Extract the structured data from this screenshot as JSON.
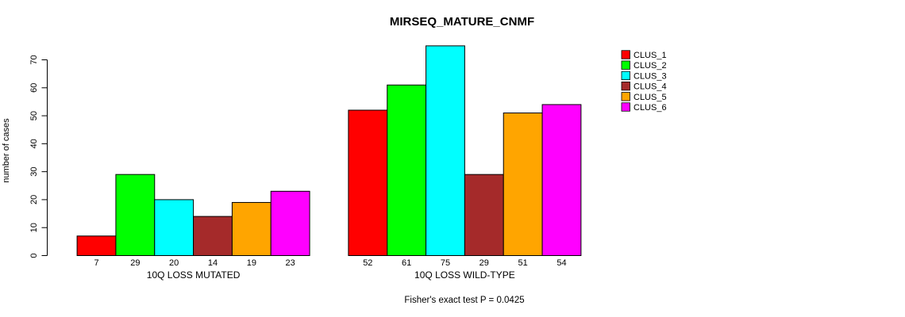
{
  "chart_data": {
    "type": "bar",
    "title": "MIRSEQ_MATURE_CNMF",
    "ylabel": "number of cases",
    "xlabel": "",
    "footnote": "Fisher's exact test P = 0.0425",
    "ylim": [
      0,
      70
    ],
    "yticks": [
      0,
      10,
      20,
      30,
      40,
      50,
      60,
      70
    ],
    "grid": false,
    "legend_position": "top-right",
    "bar_value_labels_shown": true,
    "categories": [
      "10Q LOSS MUTATED",
      "10Q LOSS WILD-TYPE"
    ],
    "series": [
      {
        "name": "CLUS_1",
        "color": "#FF0000",
        "values": [
          7,
          52
        ]
      },
      {
        "name": "CLUS_2",
        "color": "#00FF00",
        "values": [
          29,
          61
        ]
      },
      {
        "name": "CLUS_3",
        "color": "#00FFFF",
        "values": [
          20,
          75
        ]
      },
      {
        "name": "CLUS_4",
        "color": "#A52A2A",
        "values": [
          14,
          29
        ]
      },
      {
        "name": "CLUS_5",
        "color": "#FFA500",
        "values": [
          19,
          51
        ]
      },
      {
        "name": "CLUS_6",
        "color": "#FF00FF",
        "values": [
          23,
          54
        ]
      }
    ],
    "colors": {
      "background": "#FFFFFF",
      "axis": "#000000",
      "text": "#000000",
      "bar_border": "#000000"
    }
  }
}
